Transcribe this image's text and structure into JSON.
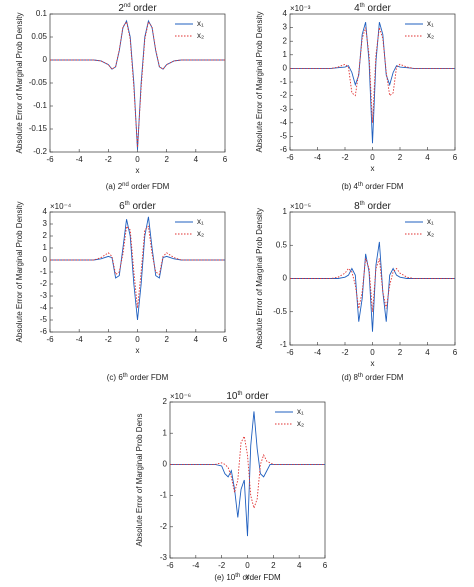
{
  "chart_data": [
    {
      "type": "line",
      "title": [
        "2",
        "nd",
        " order"
      ],
      "caption": [
        "(a) 2",
        "nd",
        " order FDM"
      ],
      "xlabel": "x",
      "ylabel": "Absolute Error of Marginal Prob Density",
      "x": [
        -6,
        -4,
        -3,
        -2.5,
        -2,
        -1.75,
        -1.5,
        -1.25,
        -1,
        -0.75,
        -0.5,
        -0.25,
        0,
        0.25,
        0.5,
        0.75,
        1,
        1.25,
        1.5,
        1.75,
        2,
        2.5,
        3,
        4,
        6
      ],
      "xlim": [
        -6,
        6
      ],
      "xticks": [
        -6,
        -4,
        -2,
        0,
        2,
        4,
        6
      ],
      "ylim": [
        -0.2,
        0.1
      ],
      "yticks": [
        -0.2,
        -0.15,
        -0.1,
        -0.05,
        0,
        0.05,
        0.1
      ],
      "series": [
        {
          "name": "x₁",
          "color": "#1f5fbf",
          "values": [
            0,
            0,
            0,
            -0.002,
            -0.01,
            -0.02,
            -0.015,
            0.02,
            0.07,
            0.085,
            0.05,
            -0.05,
            -0.195,
            -0.05,
            0.05,
            0.085,
            0.07,
            0.02,
            -0.015,
            -0.02,
            -0.01,
            -0.002,
            0,
            0,
            0
          ]
        },
        {
          "name": "x₂",
          "color": "#e03030",
          "values": [
            0,
            0,
            0,
            -0.002,
            -0.01,
            -0.02,
            -0.014,
            0.022,
            0.072,
            0.083,
            0.045,
            -0.06,
            -0.19,
            -0.06,
            0.045,
            0.083,
            0.072,
            0.022,
            -0.014,
            -0.02,
            -0.01,
            -0.002,
            0,
            0,
            0
          ]
        }
      ]
    },
    {
      "type": "line",
      "title": [
        "4",
        "th",
        " order"
      ],
      "caption": [
        "(b) 4",
        "th",
        " order FDM"
      ],
      "xlabel": "x",
      "ylabel": "Absolute Error of Marginal Prob Density",
      "exponent": "×10⁻³",
      "x": [
        -6,
        -4,
        -3,
        -2.5,
        -2,
        -1.75,
        -1.5,
        -1.25,
        -1,
        -0.75,
        -0.5,
        -0.25,
        0,
        0.25,
        0.5,
        0.75,
        1,
        1.25,
        1.5,
        1.75,
        2,
        2.5,
        3,
        4,
        6
      ],
      "xlim": [
        -6,
        6
      ],
      "xticks": [
        -6,
        -4,
        -2,
        0,
        2,
        4,
        6
      ],
      "ylim": [
        -6,
        4
      ],
      "yticks": [
        -6,
        -5,
        -4,
        -3,
        -2,
        -1,
        0,
        1,
        2,
        3,
        4
      ],
      "series": [
        {
          "name": "x₁",
          "color": "#1f5fbf",
          "values": [
            0,
            0,
            0,
            0.05,
            0.1,
            0.2,
            -0.3,
            -1.2,
            -0.5,
            2.5,
            3.4,
            0.5,
            -5.5,
            0.5,
            3.4,
            2.5,
            -0.5,
            -1.2,
            -0.3,
            0.2,
            0.1,
            0.05,
            0,
            0,
            0
          ]
        },
        {
          "name": "x₂",
          "color": "#e03030",
          "values": [
            0,
            0,
            0,
            0.1,
            0.3,
            0.1,
            -1.8,
            -2,
            -0.3,
            2.2,
            3,
            1,
            -4,
            1,
            3,
            2.2,
            -0.3,
            -2,
            -1.8,
            0.1,
            0.3,
            0.1,
            0,
            0,
            0
          ]
        }
      ]
    },
    {
      "type": "line",
      "title": [
        "6",
        "th",
        " order"
      ],
      "caption": [
        "(c) 6",
        "th",
        " order FDM"
      ],
      "xlabel": "x",
      "ylabel": "Absolute Error of Marginal Prob Density",
      "exponent": "×10⁻⁴",
      "x": [
        -6,
        -4,
        -3,
        -2.5,
        -2,
        -1.75,
        -1.5,
        -1.25,
        -1,
        -0.75,
        -0.5,
        -0.25,
        0,
        0.25,
        0.5,
        0.75,
        1,
        1.25,
        1.5,
        1.75,
        2,
        2.5,
        3,
        4,
        6
      ],
      "xlim": [
        -6,
        6
      ],
      "xticks": [
        -6,
        -4,
        -2,
        0,
        2,
        4,
        6
      ],
      "ylim": [
        -6,
        4
      ],
      "yticks": [
        -6,
        -5,
        -4,
        -3,
        -2,
        -1,
        0,
        1,
        2,
        3,
        4
      ],
      "series": [
        {
          "name": "x₁",
          "color": "#1f5fbf",
          "values": [
            0,
            0,
            0,
            0.1,
            0.3,
            0.2,
            -1.5,
            -1.3,
            1,
            3.4,
            2,
            -2,
            -5,
            -2,
            2,
            3.6,
            1,
            -1.3,
            -1.5,
            0.2,
            0.3,
            0.1,
            0,
            0,
            0
          ]
        },
        {
          "name": "x₂",
          "color": "#e03030",
          "values": [
            0,
            0,
            0,
            0.2,
            0.6,
            0.3,
            -1.2,
            -1,
            0.5,
            2.8,
            2.5,
            -1,
            -4,
            -1,
            2.5,
            2.8,
            0.5,
            -1,
            -1.2,
            0.3,
            0.6,
            0.2,
            0,
            0,
            0
          ]
        }
      ]
    },
    {
      "type": "line",
      "title": [
        "8",
        "th",
        " order"
      ],
      "caption": [
        "(d) 8",
        "th",
        " order FDM"
      ],
      "xlabel": "x",
      "ylabel": "Absolute Error of Marginal Prob Density",
      "exponent": "×10⁻⁵",
      "x": [
        -6,
        -4,
        -3,
        -2.5,
        -2,
        -1.75,
        -1.5,
        -1.25,
        -1,
        -0.75,
        -0.5,
        -0.25,
        0,
        0.25,
        0.5,
        0.75,
        1,
        1.25,
        1.5,
        1.75,
        2,
        2.5,
        3,
        4,
        6
      ],
      "xlim": [
        -6,
        6
      ],
      "xticks": [
        -6,
        -4,
        -2,
        0,
        2,
        4,
        6
      ],
      "ylim": [
        -1,
        1
      ],
      "yticks": [
        -1,
        -0.5,
        0,
        0.5,
        1
      ],
      "series": [
        {
          "name": "x₁",
          "color": "#1f5fbf",
          "values": [
            0,
            0,
            0,
            0,
            0.02,
            0.05,
            0.15,
            0.05,
            -0.65,
            -0.3,
            0.37,
            0.1,
            -0.8,
            0.2,
            0.55,
            -0.2,
            -0.65,
            0.05,
            0.15,
            0.05,
            0.02,
            0,
            0,
            0,
            0
          ]
        },
        {
          "name": "x₂",
          "color": "#e03030",
          "values": [
            0,
            0,
            0,
            0.02,
            0.08,
            0.15,
            0.1,
            -0.1,
            -0.45,
            -0.2,
            0.3,
            0.15,
            -0.5,
            0.15,
            0.3,
            -0.2,
            -0.45,
            -0.1,
            0.1,
            0.15,
            0.08,
            0.02,
            0,
            0,
            0
          ]
        }
      ]
    },
    {
      "type": "line",
      "title": [
        "10",
        "th",
        " order"
      ],
      "caption": [
        "(e) 10",
        "th",
        " order FDM"
      ],
      "xlabel": "x",
      "ylabel": "Absolute Error of Marginal Prob Dens",
      "exponent": "×10⁻⁶",
      "x": [
        -6,
        -4,
        -3,
        -2.5,
        -2,
        -1.75,
        -1.5,
        -1.25,
        -1,
        -0.75,
        -0.5,
        -0.25,
        0,
        0.25,
        0.5,
        0.75,
        1,
        1.25,
        1.5,
        1.75,
        2,
        2.5,
        3,
        4,
        6
      ],
      "xlim": [
        -6,
        6
      ],
      "xticks": [
        -6,
        -4,
        -2,
        0,
        2,
        4,
        6
      ],
      "ylim": [
        -3,
        2
      ],
      "yticks": [
        -3,
        -2,
        -1,
        0,
        1,
        2
      ],
      "series": [
        {
          "name": "x₁",
          "color": "#1f5fbf",
          "values": [
            0,
            0,
            0,
            0,
            -0.05,
            -0.3,
            -0.4,
            -0.2,
            -0.8,
            -1.7,
            -0.8,
            -0.5,
            -2.3,
            0.6,
            1.7,
            0.5,
            -0.3,
            -0.4,
            -0.2,
            0,
            0,
            0,
            0,
            0,
            0
          ]
        },
        {
          "name": "x₂",
          "color": "#e03030",
          "values": [
            0,
            0,
            0,
            0,
            0.05,
            0,
            -0.1,
            -0.4,
            -0.9,
            -0.5,
            0.7,
            0.9,
            0.3,
            -1,
            -1.4,
            -1.1,
            0,
            0.3,
            0.1,
            0.05,
            0,
            0,
            0,
            0,
            0
          ]
        }
      ]
    }
  ]
}
